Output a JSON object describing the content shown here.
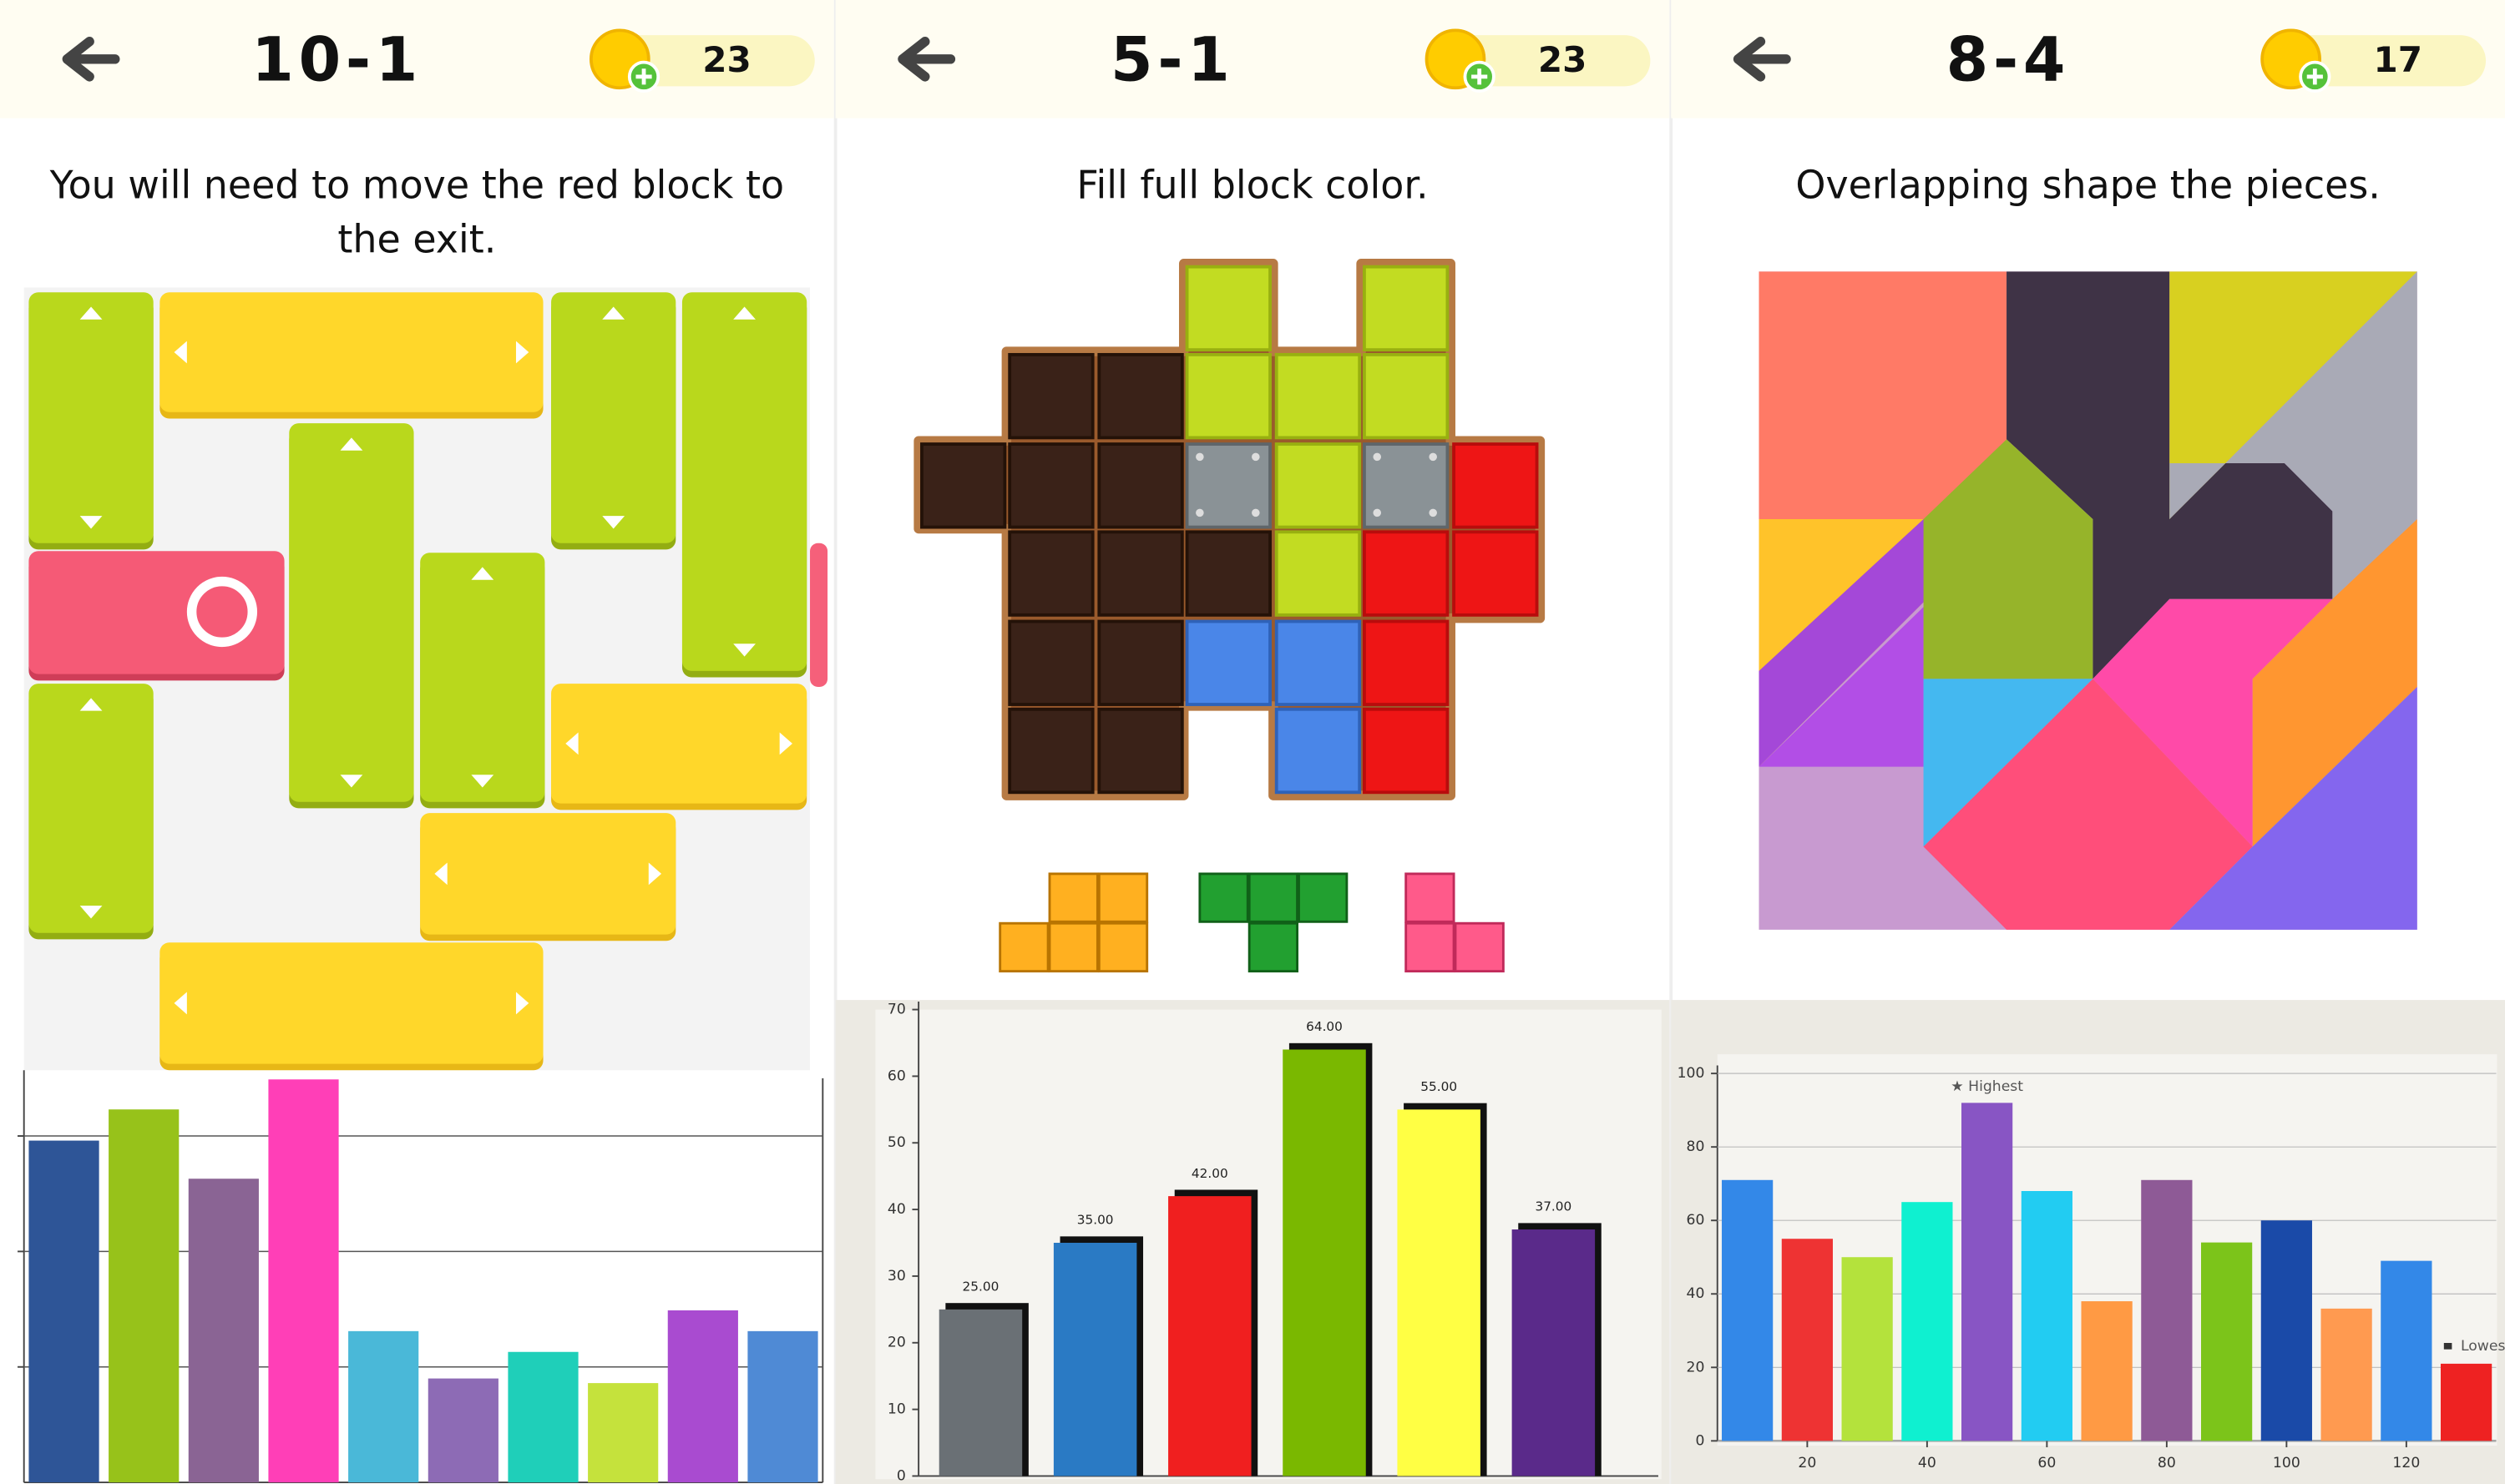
{
  "screens": [
    {
      "level": "10-1",
      "coins": 23,
      "instruction": "You will need to move the red block to the exit."
    },
    {
      "level": "5-1",
      "coins": 23,
      "instruction": "Fill full block color."
    },
    {
      "level": "8-4",
      "coins": 17,
      "instruction": "Overlapping shape the pieces."
    }
  ],
  "chart_data": [
    {
      "type": "bar",
      "values": [
        2.96,
        3.23,
        2.63,
        3.49,
        1.31,
        0.9,
        1.13,
        0.86,
        1.49,
        1.31
      ],
      "colors": [
        "#2e5597",
        "#97c21a",
        "#8a6494",
        "#ff3fb7",
        "#4ab8d8",
        "#8d6bb5",
        "#1fcfb9",
        "#c5e23c",
        "#a94bd0",
        "#4f8ad5"
      ],
      "ylim": [
        0,
        3.5
      ],
      "yticks": [
        1,
        2,
        3
      ],
      "grid": true,
      "tick_labels": false
    },
    {
      "type": "bar",
      "values": [
        25,
        35,
        42,
        64,
        55,
        37
      ],
      "value_labels": [
        "25.00",
        "35.00",
        "42.00",
        "64.00",
        "55.00",
        "37.00"
      ],
      "colors": [
        "#6a7075",
        "#2a7ac4",
        "#f01f1f",
        "#7ab800",
        "#ffff44",
        "#5a2a8a"
      ],
      "ylim": [
        0,
        70
      ],
      "yticks": [
        0,
        10,
        20,
        30,
        40,
        50,
        60,
        70
      ],
      "grid": false,
      "tick_labels": true
    },
    {
      "type": "bar",
      "x": [
        10,
        20,
        30,
        40,
        50,
        60,
        70,
        80,
        90,
        100,
        110,
        120,
        130
      ],
      "values": [
        71,
        55,
        50,
        65,
        92,
        68,
        38,
        71,
        54,
        60,
        36,
        49,
        21
      ],
      "colors": [
        "#3388e8",
        "#ee3333",
        "#b4e23c",
        "#0ff0d0",
        "#8855c4",
        "#22ccf2",
        "#ff9a44",
        "#8e5a96",
        "#7cc41a",
        "#1a4aa8",
        "#ff9a50",
        "#3388e8",
        "#ee2222"
      ],
      "xlim": [
        5,
        135
      ],
      "xticks": [
        20,
        40,
        60,
        80,
        100,
        120
      ],
      "ylim": [
        0,
        100
      ],
      "yticks": [
        0,
        20,
        40,
        60,
        80,
        100
      ],
      "grid": true,
      "tick_labels": true,
      "annotations": [
        {
          "text": "★ Highest",
          "x": 50
        },
        {
          "text": "Lowest",
          "x": 130
        }
      ]
    }
  ]
}
